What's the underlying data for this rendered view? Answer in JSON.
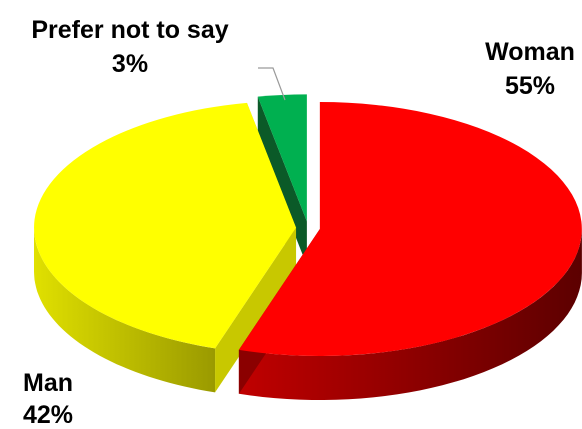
{
  "chart_data": {
    "type": "pie",
    "title": "",
    "style": "3d-exploded",
    "slices": [
      {
        "label": "Woman",
        "value": 55,
        "value_label": "55%",
        "color": "#ff0000",
        "side_color": "#8b0000"
      },
      {
        "label": "Man",
        "value": 42,
        "value_label": "42%",
        "color": "#ffff00",
        "side_color": "#c8c800"
      },
      {
        "label": "Prefer not to say",
        "value": 3,
        "value_label": "3%",
        "color": "#00b050",
        "side_color": "#0b5a28"
      }
    ]
  }
}
